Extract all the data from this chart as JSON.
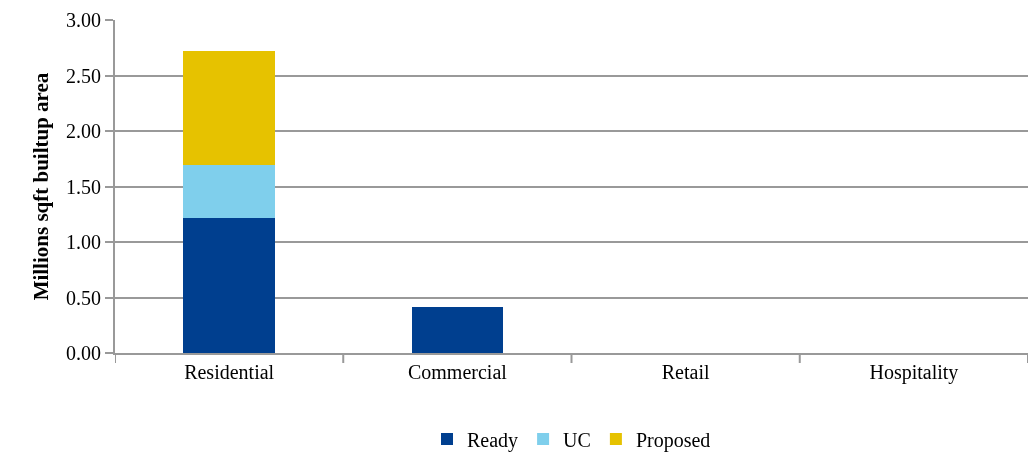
{
  "chart_data": {
    "type": "bar",
    "stacked": true,
    "ylabel": "Millions sqft builtup area",
    "categories": [
      "Residential",
      "Commercial",
      "Retail",
      "Hospitality"
    ],
    "series": [
      {
        "name": "Ready",
        "color": "#003f8f",
        "values": [
          1.22,
          0.41,
          0,
          0
        ]
      },
      {
        "name": "UC",
        "color": "#7fcfec",
        "values": [
          0.47,
          0,
          0,
          0
        ]
      },
      {
        "name": "Proposed",
        "color": "#e6c200",
        "values": [
          1.03,
          0,
          0,
          0
        ]
      }
    ],
    "ylim": [
      0,
      3
    ],
    "yticks": [
      {
        "value": 0,
        "label": "0.00"
      },
      {
        "value": 0.5,
        "label": "0.50"
      },
      {
        "value": 1,
        "label": "1.00"
      },
      {
        "value": 1.5,
        "label": "1.50"
      },
      {
        "value": 2,
        "label": "2.00"
      },
      {
        "value": 2.5,
        "label": "2.50"
      },
      {
        "value": 3,
        "label": "3.00"
      }
    ],
    "grid": "y",
    "legend": "bottom"
  }
}
